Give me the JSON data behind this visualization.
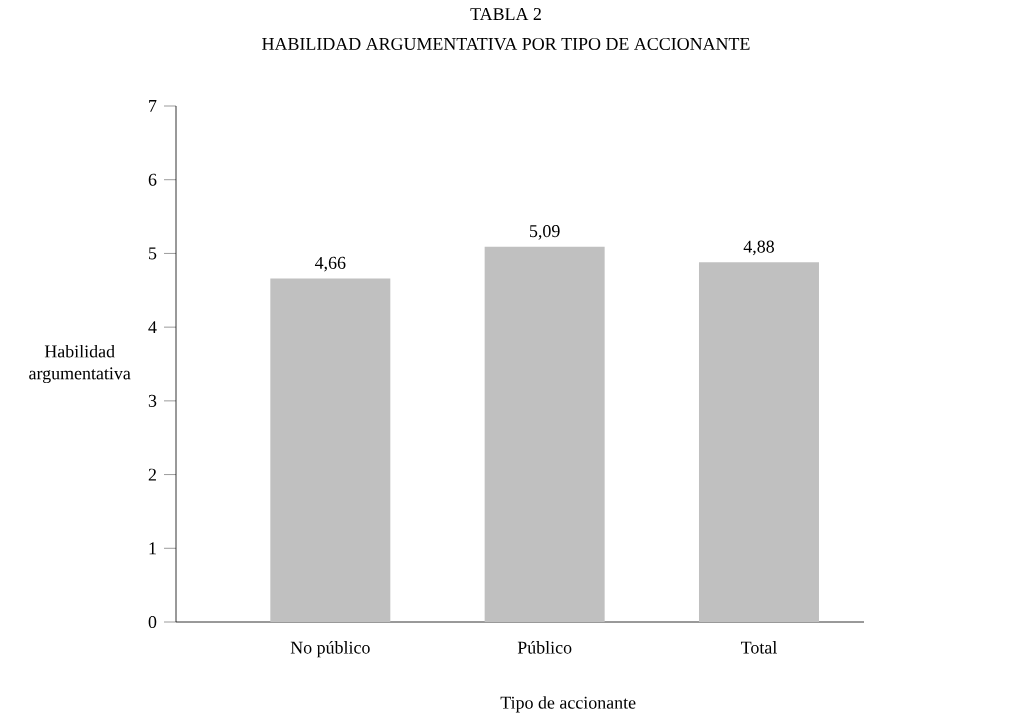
{
  "chart_data": {
    "type": "bar",
    "title": "TABLA 2",
    "subtitle": "HABILIDAD ARGUMENTATIVA POR TIPO DE ACCIONANTE",
    "xlabel": "Tipo de accionante",
    "ylabel": "Habilidad argumentativa",
    "categories": [
      "No público",
      "Público",
      "Total"
    ],
    "values": [
      4.66,
      5.09,
      4.88
    ],
    "value_labels": [
      "4,66",
      "5,09",
      "4,88"
    ],
    "color": "#c0c0c0",
    "ylim": [
      0,
      7
    ],
    "yticks": [
      0,
      1,
      2,
      3,
      4,
      5,
      6,
      7
    ]
  }
}
